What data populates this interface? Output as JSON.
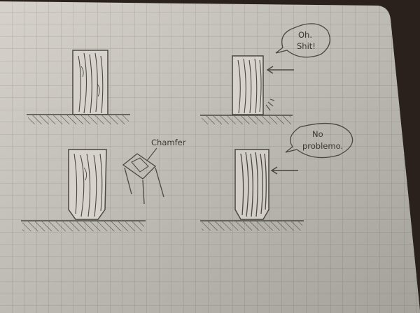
{
  "notes": {
    "top_bubble_line1": "Oh.",
    "top_bubble_line2": "Shit!",
    "bottom_bubble_line1": "No",
    "bottom_bubble_line2": "problemo.",
    "chamfer_label": "Chamfer"
  },
  "colors": {
    "paper": "#e6e2da",
    "grid": "#b6b2ac",
    "pencil": "#4a4744",
    "background": "#2a211c"
  }
}
